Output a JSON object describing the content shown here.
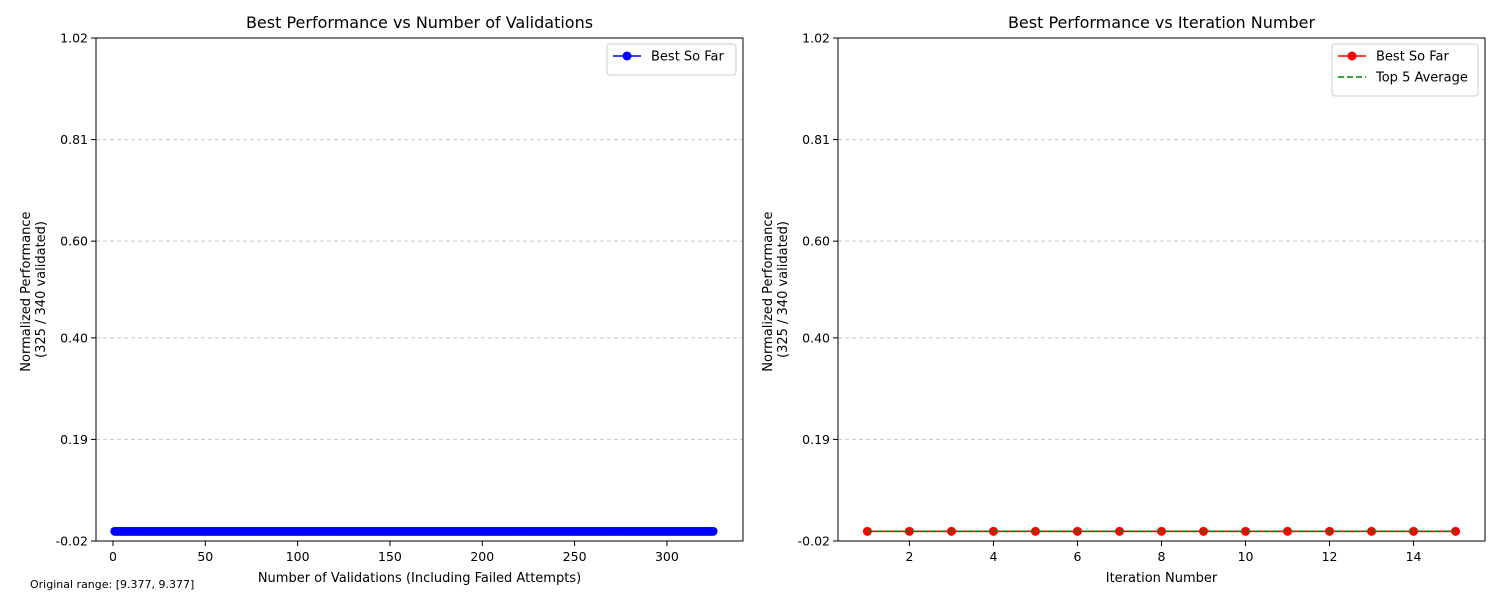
{
  "footnote": "Original range: [9.377, 9.377]",
  "colors": {
    "best_left": "#0000ff",
    "best_right": "#ff0000",
    "top5": "#008000",
    "grid": "#c8c8c8"
  },
  "chart_data": [
    {
      "type": "line",
      "title": "Best Performance vs Number of Validations",
      "xlabel": "Number of Validations (Including Failed Attempts)",
      "ylabel_lines": [
        "Normalized Performance",
        "(325 / 340 validated)"
      ],
      "xlim": [
        -9.2,
        341.2
      ],
      "ylim": [
        -0.02,
        1.02
      ],
      "xticks": [
        0,
        50,
        100,
        150,
        200,
        250,
        300
      ],
      "yticks": [
        -0.02,
        0.19,
        0.4,
        0.6,
        0.81,
        1.02
      ],
      "ytick_labels": [
        "-0.02",
        "0.19",
        "0.40",
        "0.60",
        "0.81",
        "1.02"
      ],
      "grid": "horizontal dashed",
      "legend_position": "top-right",
      "series": [
        {
          "name": "Best So Far",
          "style": "solid line with circle markers",
          "x_range": [
            1,
            325
          ],
          "y_constant": 0.0
        }
      ]
    },
    {
      "type": "line",
      "title": "Best Performance vs Iteration Number",
      "xlabel": "Iteration Number",
      "ylabel_lines": [
        "Normalized Performance",
        "(325 / 340 validated)"
      ],
      "xlim": [
        0.3,
        15.7
      ],
      "ylim": [
        -0.02,
        1.02
      ],
      "xticks": [
        2,
        4,
        6,
        8,
        10,
        12,
        14
      ],
      "yticks": [
        -0.02,
        0.19,
        0.4,
        0.6,
        0.81,
        1.02
      ],
      "ytick_labels": [
        "-0.02",
        "0.19",
        "0.40",
        "0.60",
        "0.81",
        "1.02"
      ],
      "grid": "horizontal dashed",
      "legend_position": "top-right",
      "series": [
        {
          "name": "Best So Far",
          "style": "solid line with circle markers",
          "x": [
            1,
            2,
            3,
            4,
            5,
            6,
            7,
            8,
            9,
            10,
            11,
            12,
            13,
            14,
            15
          ],
          "y": [
            0,
            0,
            0,
            0,
            0,
            0,
            0,
            0,
            0,
            0,
            0,
            0,
            0,
            0,
            0
          ]
        },
        {
          "name": "Top 5 Average",
          "style": "dashed line",
          "x": [
            1,
            2,
            3,
            4,
            5,
            6,
            7,
            8,
            9,
            10,
            11,
            12,
            13,
            14,
            15
          ],
          "y": [
            0,
            0,
            0,
            0,
            0,
            0,
            0,
            0,
            0,
            0,
            0,
            0,
            0,
            0,
            0
          ]
        }
      ]
    }
  ]
}
